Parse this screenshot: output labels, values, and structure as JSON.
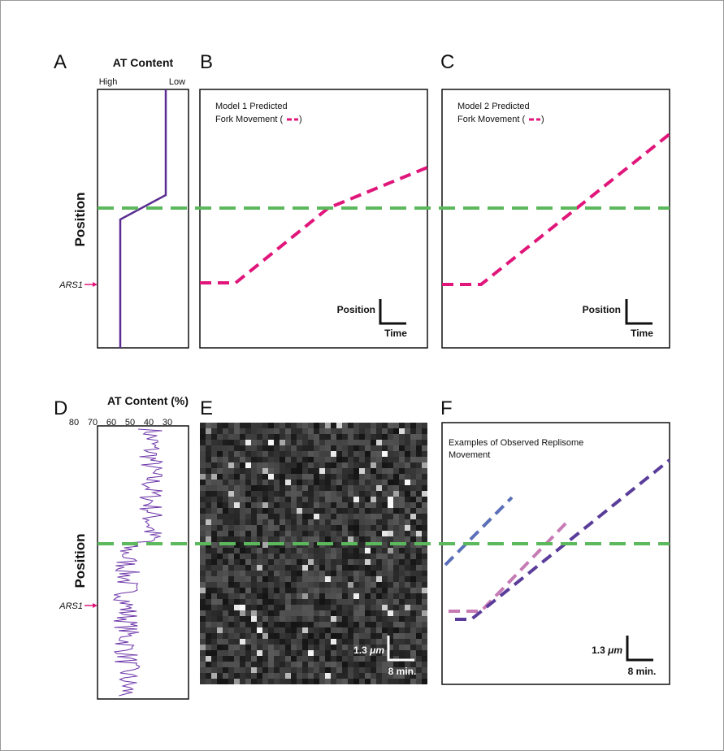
{
  "panels": {
    "A": {
      "letter": "A",
      "title": "AT Content",
      "high": "High",
      "low": "Low",
      "y_label": "Position",
      "marker": "ARS1"
    },
    "B": {
      "letter": "B",
      "legend_line1": "Model 1 Predicted",
      "legend_line2": "Fork Movement (",
      "legend_close": ")",
      "scale_y": "Position",
      "scale_x": "Time"
    },
    "C": {
      "letter": "C",
      "legend_line1": "Model 2 Predicted",
      "legend_line2": "Fork Movement (",
      "legend_close": ")",
      "scale_y": "Position",
      "scale_x": "Time"
    },
    "D": {
      "letter": "D",
      "title": "AT Content (%)",
      "ticks": [
        80,
        70,
        60,
        50,
        40,
        30
      ],
      "y_label": "Position",
      "marker": "ARS1"
    },
    "E": {
      "letter": "E",
      "scale_y_value": "1.3",
      "scale_y_unit": "μm",
      "scale_x": "8 min."
    },
    "F": {
      "letter": "F",
      "legend_line1": "Examples of Observed Replisome",
      "legend_line2": "Movement",
      "scale_y_value": "1.3",
      "scale_y_unit": "μm",
      "scale_x": "8 min."
    }
  }
}
